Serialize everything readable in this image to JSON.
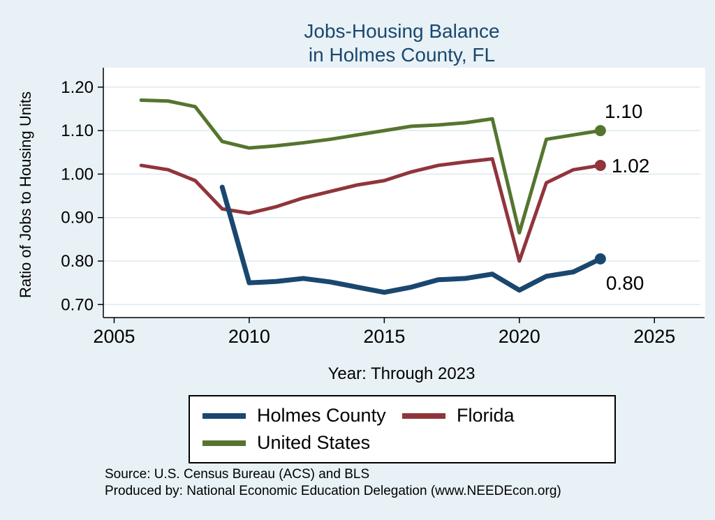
{
  "title": {
    "line1": "Jobs-Housing Balance",
    "line2": "in Holmes County, FL"
  },
  "chart_data": {
    "type": "line",
    "title": "Jobs-Housing Balance in Holmes County, FL",
    "xlabel": "Year: Through 2023",
    "ylabel": "Ratio of Jobs to Housing Units",
    "xlim": [
      2004.6,
      2026.7
    ],
    "ylim": [
      0.67,
      1.235
    ],
    "xticks": [
      2005,
      2010,
      2015,
      2020,
      2025
    ],
    "yticks": [
      0.7,
      0.8,
      0.9,
      1.0,
      1.1,
      1.2
    ],
    "grid": true,
    "legend_position": "bottom",
    "series": [
      {
        "name": "Holmes County",
        "color": "#1a476f",
        "line_width": 7,
        "end_label": "0.80",
        "x": [
          2009,
          2010,
          2011,
          2012,
          2013,
          2014,
          2015,
          2016,
          2017,
          2018,
          2019,
          2020,
          2021,
          2022,
          2023
        ],
        "values": [
          0.97,
          0.75,
          0.753,
          0.76,
          0.752,
          0.74,
          0.728,
          0.74,
          0.757,
          0.76,
          0.77,
          0.733,
          0.765,
          0.775,
          0.805
        ]
      },
      {
        "name": "Florida",
        "color": "#90353b",
        "line_width": 5,
        "end_label": "1.02",
        "x": [
          2006,
          2007,
          2008,
          2009,
          2010,
          2011,
          2012,
          2013,
          2014,
          2015,
          2016,
          2017,
          2018,
          2019,
          2020,
          2021,
          2022,
          2023
        ],
        "values": [
          1.02,
          1.01,
          0.985,
          0.92,
          0.91,
          0.925,
          0.945,
          0.96,
          0.975,
          0.985,
          1.005,
          1.02,
          1.028,
          1.035,
          0.8,
          0.98,
          1.01,
          1.02
        ]
      },
      {
        "name": "United States",
        "color": "#55752f",
        "line_width": 5,
        "end_label": "1.10",
        "x": [
          2006,
          2007,
          2008,
          2009,
          2010,
          2011,
          2012,
          2013,
          2014,
          2015,
          2016,
          2017,
          2018,
          2019,
          2020,
          2021,
          2022,
          2023
        ],
        "values": [
          1.17,
          1.168,
          1.155,
          1.075,
          1.06,
          1.065,
          1.072,
          1.08,
          1.09,
          1.1,
          1.11,
          1.113,
          1.118,
          1.127,
          0.865,
          1.08,
          1.09,
          1.1
        ]
      }
    ]
  },
  "footer": {
    "source": "Source: U.S. Census Bureau (ACS) and BLS",
    "produced": "Produced by: National Economic Education Delegation (www.NEEDEcon.org)"
  },
  "colors": {
    "background": "#e8f1f5",
    "plot_background": "#ffffff",
    "grid": "#dde9ee",
    "axis": "#000000",
    "title": "#1a476f",
    "text": "#000000"
  }
}
